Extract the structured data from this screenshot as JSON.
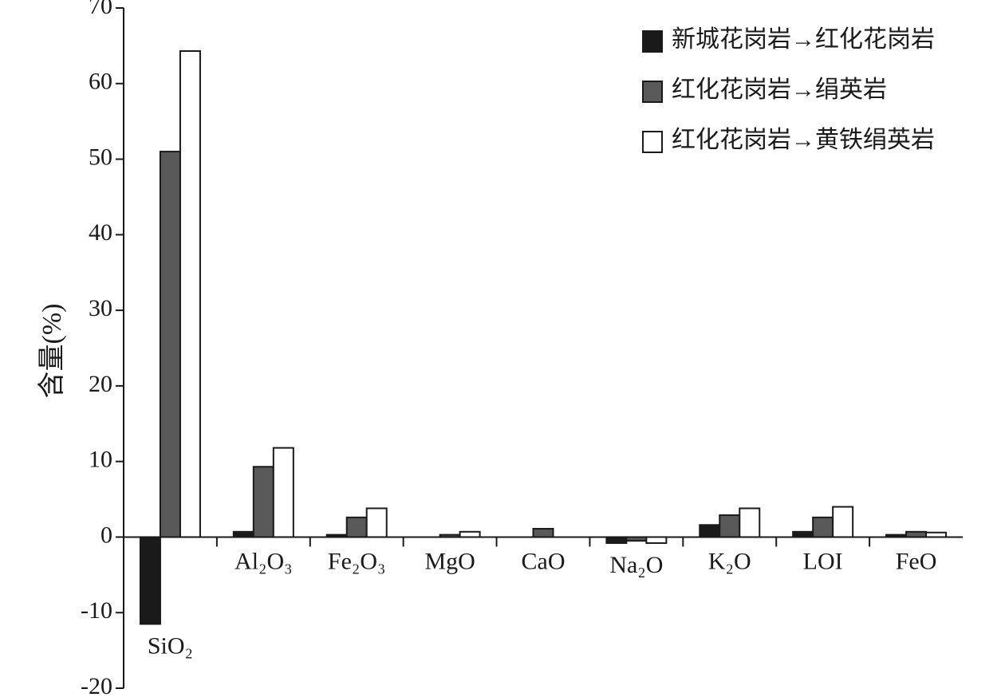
{
  "chart_data": {
    "type": "bar",
    "y_label": "含量(%)",
    "categories": [
      "SiO₂",
      "Al₂O₃",
      "Fe₂O₃",
      "MgO",
      "CaO",
      "Na₂O",
      "K₂O",
      "LOI",
      "FeO"
    ],
    "series": [
      {
        "name": "新城花岗岩→红化花岗岩",
        "color": "#1a1a1a",
        "values": [
          -11.5,
          0.7,
          0.3,
          0,
          0,
          -0.8,
          1.6,
          0.7,
          0.3
        ]
      },
      {
        "name": "红化花岗岩→绢英岩",
        "color": "#595959",
        "values": [
          51,
          9.3,
          2.6,
          0.3,
          1.1,
          -0.5,
          2.9,
          2.6,
          0.7
        ]
      },
      {
        "name": "红化花岗岩→黄铁绢英岩",
        "color": "#ffffff",
        "values": [
          64.3,
          11.8,
          3.8,
          0.7,
          0,
          -0.8,
          3.8,
          4.0,
          0.6
        ]
      }
    ],
    "ylim": [
      -20,
      70
    ],
    "yticks": [
      -20,
      -10,
      0,
      10,
      20,
      30,
      40,
      50,
      60,
      70
    ],
    "grid": false,
    "legend": "top-right"
  }
}
